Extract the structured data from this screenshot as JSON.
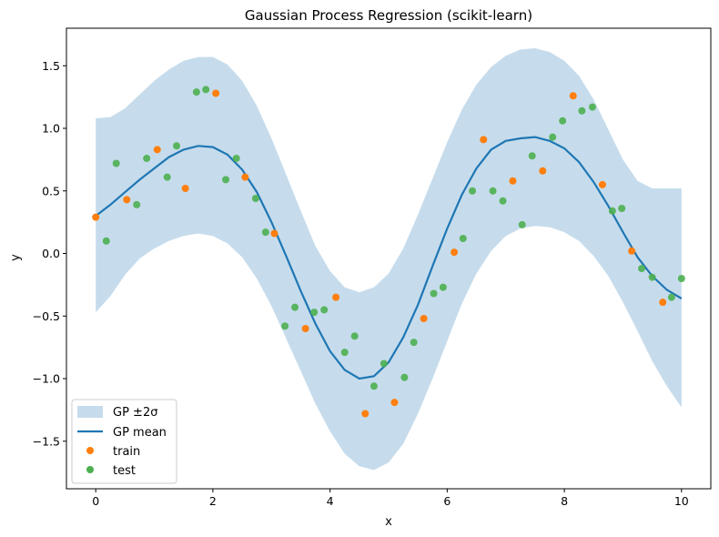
{
  "chart_data": {
    "type": "scatter",
    "title": "Gaussian Process Regression (scikit-learn)",
    "xlabel": "x",
    "ylabel": "y",
    "xlim": [
      -0.5,
      10.5
    ],
    "ylim": [
      -1.88,
      1.8
    ],
    "xticks": [
      0,
      2,
      4,
      6,
      8,
      10
    ],
    "yticks": [
      -1.5,
      -1.0,
      -0.5,
      0.0,
      0.5,
      1.0,
      1.5
    ],
    "ytick_labels": [
      "−1.5",
      "−1.0",
      "−0.5",
      "0.0",
      "0.5",
      "1.0",
      "1.5"
    ],
    "grid": false,
    "legend_position": "lower-left",
    "colors": {
      "band": "#c6dcec",
      "mean": "#1f77b4",
      "train": "#ff7f0e",
      "test": "#4caf50"
    },
    "band": {
      "name": "GP ±2σ",
      "x": [
        0,
        0.25,
        0.5,
        0.75,
        1.0,
        1.25,
        1.5,
        1.75,
        2.0,
        2.25,
        2.5,
        2.75,
        3.0,
        3.25,
        3.5,
        3.75,
        4.0,
        4.25,
        4.5,
        4.75,
        5.0,
        5.25,
        5.5,
        5.75,
        6.0,
        6.25,
        6.5,
        6.75,
        7.0,
        7.25,
        7.5,
        7.75,
        8.0,
        8.25,
        8.5,
        8.75,
        9.0,
        9.25,
        9.5,
        9.75,
        10.0
      ],
      "lower": [
        -0.47,
        -0.34,
        -0.17,
        -0.04,
        0.04,
        0.1,
        0.14,
        0.16,
        0.14,
        0.08,
        -0.03,
        -0.2,
        -0.42,
        -0.68,
        -0.94,
        -1.2,
        -1.42,
        -1.6,
        -1.7,
        -1.73,
        -1.67,
        -1.52,
        -1.28,
        -1.0,
        -0.7,
        -0.4,
        -0.16,
        0.02,
        0.14,
        0.2,
        0.22,
        0.21,
        0.17,
        0.1,
        -0.02,
        -0.18,
        -0.39,
        -0.62,
        -0.86,
        -1.06,
        -1.23
      ],
      "upper": [
        1.08,
        1.09,
        1.16,
        1.27,
        1.38,
        1.47,
        1.54,
        1.57,
        1.57,
        1.51,
        1.38,
        1.18,
        0.92,
        0.63,
        0.34,
        0.06,
        -0.14,
        -0.27,
        -0.31,
        -0.27,
        -0.16,
        0.04,
        0.31,
        0.6,
        0.89,
        1.15,
        1.35,
        1.49,
        1.58,
        1.63,
        1.64,
        1.61,
        1.54,
        1.42,
        1.23,
        0.99,
        0.75,
        0.58,
        0.52,
        0.52,
        0.52
      ]
    },
    "mean": {
      "name": "GP mean",
      "x": [
        0,
        0.25,
        0.5,
        0.75,
        1.0,
        1.25,
        1.5,
        1.75,
        2.0,
        2.25,
        2.5,
        2.75,
        3.0,
        3.25,
        3.5,
        3.75,
        4.0,
        4.25,
        4.5,
        4.75,
        5.0,
        5.25,
        5.5,
        5.75,
        6.0,
        6.25,
        6.5,
        6.75,
        7.0,
        7.25,
        7.5,
        7.75,
        8.0,
        8.25,
        8.5,
        8.75,
        9.0,
        9.25,
        9.5,
        9.75,
        10.0
      ],
      "y": [
        0.3,
        0.39,
        0.49,
        0.59,
        0.68,
        0.77,
        0.83,
        0.86,
        0.85,
        0.79,
        0.67,
        0.49,
        0.25,
        -0.02,
        -0.3,
        -0.56,
        -0.78,
        -0.93,
        -1.0,
        -0.98,
        -0.87,
        -0.67,
        -0.41,
        -0.1,
        0.2,
        0.47,
        0.68,
        0.83,
        0.9,
        0.92,
        0.93,
        0.9,
        0.84,
        0.73,
        0.57,
        0.38,
        0.17,
        -0.03,
        -0.18,
        -0.29,
        -0.36
      ]
    },
    "train": {
      "name": "train",
      "x": [
        0.0,
        0.53,
        1.05,
        1.53,
        2.05,
        2.55,
        3.05,
        3.58,
        4.1,
        4.6,
        5.1,
        5.6,
        6.12,
        6.62,
        7.12,
        7.63,
        8.15,
        8.65,
        9.15,
        9.68
      ],
      "y": [
        0.29,
        0.43,
        0.83,
        0.52,
        1.28,
        0.61,
        0.16,
        -0.6,
        -0.35,
        -1.28,
        -1.19,
        -0.52,
        0.01,
        0.91,
        0.58,
        0.66,
        1.26,
        0.55,
        0.02,
        -0.39
      ]
    },
    "test": {
      "name": "test",
      "x": [
        0.18,
        0.35,
        0.7,
        0.87,
        1.22,
        1.38,
        1.72,
        1.88,
        2.22,
        2.4,
        2.73,
        2.9,
        3.23,
        3.4,
        3.73,
        3.9,
        4.25,
        4.42,
        4.75,
        4.92,
        5.27,
        5.43,
        5.77,
        5.93,
        6.27,
        6.43,
        6.78,
        6.95,
        7.28,
        7.45,
        7.8,
        7.97,
        8.3,
        8.48,
        8.82,
        8.98,
        9.32,
        9.5,
        9.83,
        10.0
      ],
      "y": [
        0.1,
        0.72,
        0.39,
        0.76,
        0.61,
        0.86,
        1.29,
        1.31,
        0.59,
        0.76,
        0.44,
        0.17,
        -0.58,
        -0.43,
        -0.47,
        -0.45,
        -0.79,
        -0.66,
        -1.06,
        -0.88,
        -0.99,
        -0.71,
        -0.32,
        -0.27,
        0.12,
        0.5,
        0.5,
        0.42,
        0.23,
        0.78,
        0.93,
        1.06,
        1.14,
        1.17,
        0.34,
        0.36,
        -0.12,
        -0.19,
        -0.35,
        -0.2
      ]
    }
  }
}
